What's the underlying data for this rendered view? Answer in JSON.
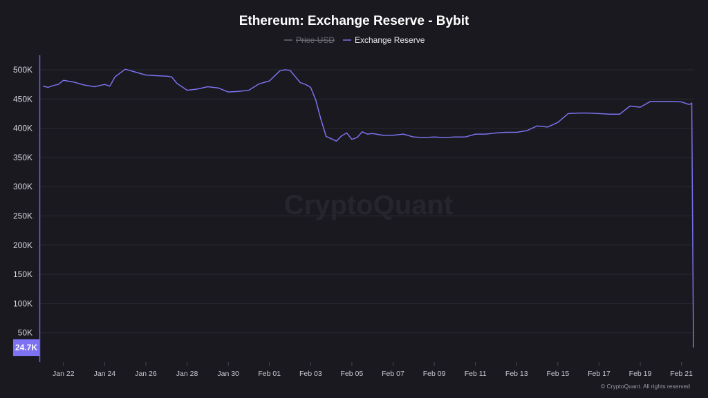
{
  "colors": {
    "series": "#7b72ee",
    "price": "#6b6b75",
    "background": "#1a191f",
    "grid": "#2b2a33",
    "axis_line": "#6a63e0",
    "last_label_bg": "#7c72f2"
  },
  "watermark": "CryptoQuant",
  "credit": "© CryptoQuant. All rights reserved",
  "chart_data": {
    "type": "line",
    "title": "Ethereum: Exchange Reserve - Bybit",
    "legend": {
      "placement": "top-center",
      "items": [
        {
          "name": "Price USD",
          "hidden": true
        },
        {
          "name": "Exchange Reserve",
          "hidden": false
        }
      ]
    },
    "grid": true,
    "ylim": [
      0,
      520000
    ],
    "y_ticks": [
      50000,
      100000,
      150000,
      200000,
      250000,
      300000,
      350000,
      400000,
      450000,
      500000
    ],
    "y_tick_labels": [
      "50K",
      "100K",
      "150K",
      "200K",
      "250K",
      "300K",
      "350K",
      "400K",
      "450K",
      "500K"
    ],
    "x_range": [
      "2025-01-21",
      "2025-02-21T14:00"
    ],
    "x_ticks": [
      "2025-01-22",
      "2025-01-24",
      "2025-01-26",
      "2025-01-28",
      "2025-01-30",
      "2025-02-01",
      "2025-02-03",
      "2025-02-05",
      "2025-02-07",
      "2025-02-09",
      "2025-02-11",
      "2025-02-13",
      "2025-02-15",
      "2025-02-17",
      "2025-02-19",
      "2025-02-21"
    ],
    "x_tick_labels": [
      "Jan 22",
      "Jan 24",
      "Jan 26",
      "Jan 28",
      "Jan 30",
      "Feb 01",
      "Feb 03",
      "Feb 05",
      "Feb 07",
      "Feb 09",
      "Feb 11",
      "Feb 13",
      "Feb 15",
      "Feb 17",
      "Feb 19",
      "Feb 21"
    ],
    "last_value_label": "24.7K",
    "series": [
      {
        "name": "Exchange Reserve",
        "x": [
          "2025-01-21T00:00",
          "2025-01-21T06:00",
          "2025-01-21T12:00",
          "2025-01-21T18:00",
          "2025-01-22T00:00",
          "2025-01-22T12:00",
          "2025-01-23T00:00",
          "2025-01-23T12:00",
          "2025-01-24T00:00",
          "2025-01-24T06:00",
          "2025-01-24T12:00",
          "2025-01-25T00:00",
          "2025-01-25T12:00",
          "2025-01-26T00:00",
          "2025-01-26T12:00",
          "2025-01-27T00:00",
          "2025-01-27T06:00",
          "2025-01-27T12:00",
          "2025-01-28T00:00",
          "2025-01-28T12:00",
          "2025-01-29T00:00",
          "2025-01-29T12:00",
          "2025-01-30T00:00",
          "2025-01-30T12:00",
          "2025-01-31T00:00",
          "2025-01-31T12:00",
          "2025-02-01T00:00",
          "2025-02-01T12:00",
          "2025-02-01T18:00",
          "2025-02-02T00:00",
          "2025-02-02T12:00",
          "2025-02-02T18:00",
          "2025-02-03T00:00",
          "2025-02-03T06:00",
          "2025-02-03T12:00",
          "2025-02-03T18:00",
          "2025-02-04T00:00",
          "2025-02-04T06:00",
          "2025-02-04T12:00",
          "2025-02-04T18:00",
          "2025-02-05T00:00",
          "2025-02-05T06:00",
          "2025-02-05T12:00",
          "2025-02-05T18:00",
          "2025-02-06T00:00",
          "2025-02-06T12:00",
          "2025-02-07T00:00",
          "2025-02-07T12:00",
          "2025-02-08T00:00",
          "2025-02-08T12:00",
          "2025-02-09T00:00",
          "2025-02-09T12:00",
          "2025-02-10T00:00",
          "2025-02-10T12:00",
          "2025-02-11T00:00",
          "2025-02-11T12:00",
          "2025-02-12T00:00",
          "2025-02-12T12:00",
          "2025-02-13T00:00",
          "2025-02-13T12:00",
          "2025-02-14T00:00",
          "2025-02-14T12:00",
          "2025-02-15T00:00",
          "2025-02-15T12:00",
          "2025-02-16T00:00",
          "2025-02-16T12:00",
          "2025-02-17T00:00",
          "2025-02-17T12:00",
          "2025-02-18T00:00",
          "2025-02-18T12:00",
          "2025-02-19T00:00",
          "2025-02-19T12:00",
          "2025-02-20T00:00",
          "2025-02-20T12:00",
          "2025-02-21T00:00",
          "2025-02-21T06:00",
          "2025-02-21T08:00",
          "2025-02-21T10:00",
          "2025-02-21T12:00",
          "2025-02-21T14:00"
        ],
        "values": [
          472000,
          470000,
          473000,
          475000,
          482000,
          479000,
          474000,
          471000,
          475000,
          472000,
          488000,
          501000,
          496000,
          491000,
          490000,
          489000,
          488000,
          477000,
          465000,
          467000,
          471000,
          469000,
          462000,
          463000,
          465000,
          476000,
          481000,
          498000,
          500000,
          499000,
          478000,
          475000,
          470000,
          448000,
          415000,
          386000,
          382000,
          378000,
          387000,
          392000,
          381000,
          384000,
          394000,
          390000,
          391000,
          388000,
          388000,
          390000,
          385000,
          384000,
          385000,
          384000,
          385000,
          385000,
          390000,
          390000,
          392000,
          393000,
          393000,
          396000,
          404000,
          402000,
          410000,
          425000,
          426000,
          426000,
          425000,
          424000,
          424000,
          438000,
          436000,
          446000,
          446000,
          446000,
          445000,
          442000,
          441000,
          441000,
          443000,
          24700
        ]
      }
    ]
  }
}
